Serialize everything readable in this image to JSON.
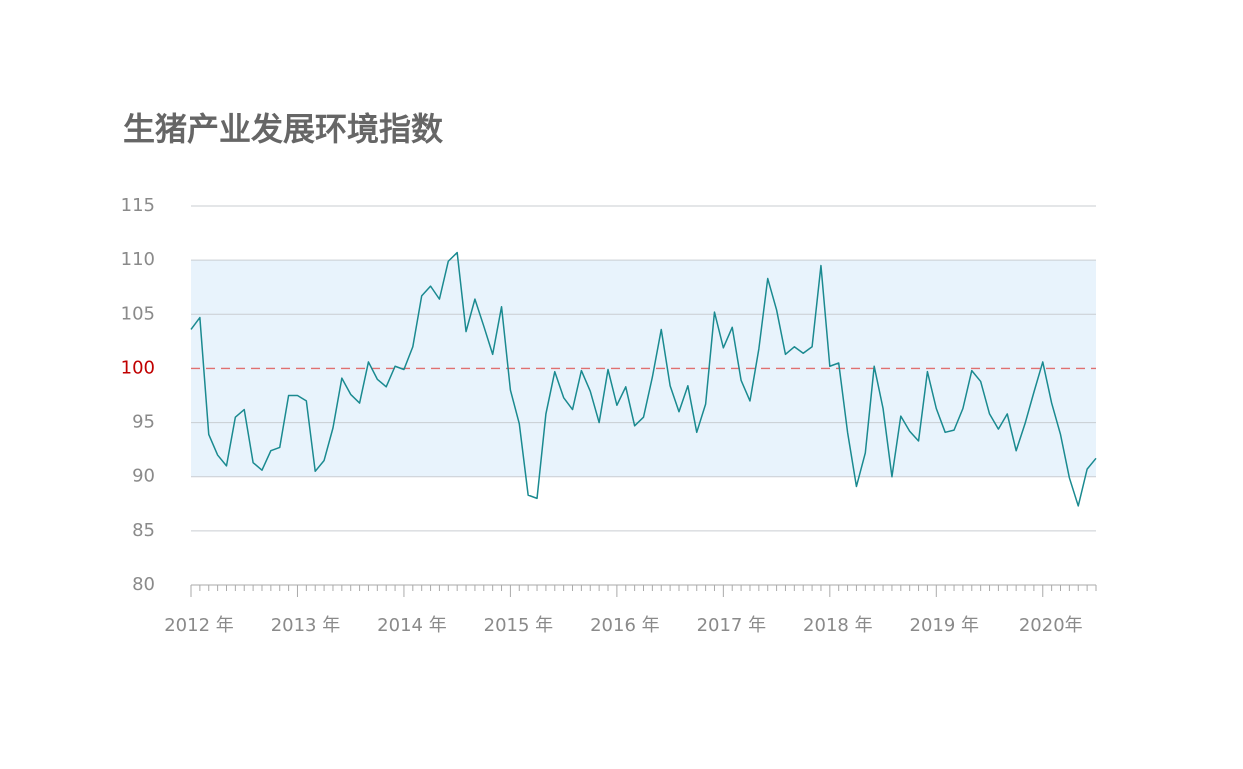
{
  "chart_data": {
    "type": "line",
    "title": "生猪产业发展环境指数",
    "categories": [
      "2012 年",
      null,
      null,
      null,
      null,
      null,
      null,
      null,
      null,
      null,
      null,
      null,
      "2013 年",
      null,
      null,
      null,
      null,
      null,
      null,
      null,
      null,
      null,
      null,
      null,
      "2014 年",
      null,
      null,
      null,
      null,
      null,
      null,
      null,
      null,
      null,
      null,
      null,
      "2015 年",
      null,
      null,
      null,
      null,
      null,
      null,
      null,
      null,
      null,
      null,
      null,
      "2016 年",
      null,
      null,
      null,
      null,
      null,
      null,
      null,
      null,
      null,
      null,
      null,
      "2017 年",
      null,
      null,
      null,
      null,
      null,
      null,
      null,
      null,
      null,
      null,
      null,
      "2018 年",
      null,
      null,
      null,
      null,
      null,
      null,
      null,
      null,
      null,
      null,
      null,
      "2019 年",
      null,
      null,
      null,
      null,
      null,
      null,
      null,
      null,
      null,
      null,
      null,
      "2020年",
      null,
      null,
      null,
      null,
      null,
      null
    ],
    "series": [
      {
        "name": "生猪产业发展环境指数",
        "color": "#1a8a90",
        "values": [
          103.6,
          104.7,
          93.9,
          92.0,
          91.0,
          95.5,
          96.2,
          91.3,
          90.6,
          92.4,
          92.7,
          97.5,
          97.5,
          97.0,
          90.5,
          91.5,
          94.5,
          99.1,
          97.6,
          96.8,
          100.6,
          99.0,
          98.3,
          100.2,
          99.9,
          102.0,
          106.7,
          107.6,
          106.4,
          109.9,
          110.7,
          103.4,
          106.4,
          103.9,
          101.3,
          105.7,
          98.0,
          94.9,
          88.3,
          88.0,
          95.8,
          99.7,
          97.3,
          96.2,
          99.8,
          97.9,
          95.0,
          99.9,
          96.6,
          98.3,
          94.7,
          95.5,
          99.2,
          103.6,
          98.4,
          96.0,
          98.4,
          94.1,
          96.7,
          105.2,
          101.9,
          103.8,
          98.9,
          97.0,
          101.8,
          108.3,
          105.4,
          101.3,
          102.0,
          101.4,
          102.0,
          109.5,
          100.2,
          100.5,
          94.1,
          89.1,
          92.2,
          100.2,
          96.3,
          90.0,
          95.6,
          94.2,
          93.3,
          99.7,
          96.3,
          94.1,
          94.3,
          96.3,
          99.8,
          98.8,
          95.8,
          94.4,
          95.8,
          92.4,
          94.9,
          97.8,
          100.6,
          96.8,
          93.9,
          89.9,
          87.3,
          90.7,
          91.7
        ]
      }
    ],
    "ylim": [
      80,
      115
    ],
    "yticks": [
      80,
      85,
      90,
      95,
      100,
      105,
      110,
      115
    ],
    "grid": true,
    "band": {
      "from": 90,
      "to": 110,
      "color": "#e8f3fc"
    },
    "reference_line": {
      "value": 100,
      "color": "#e07070",
      "label_color": "#c00000"
    }
  }
}
